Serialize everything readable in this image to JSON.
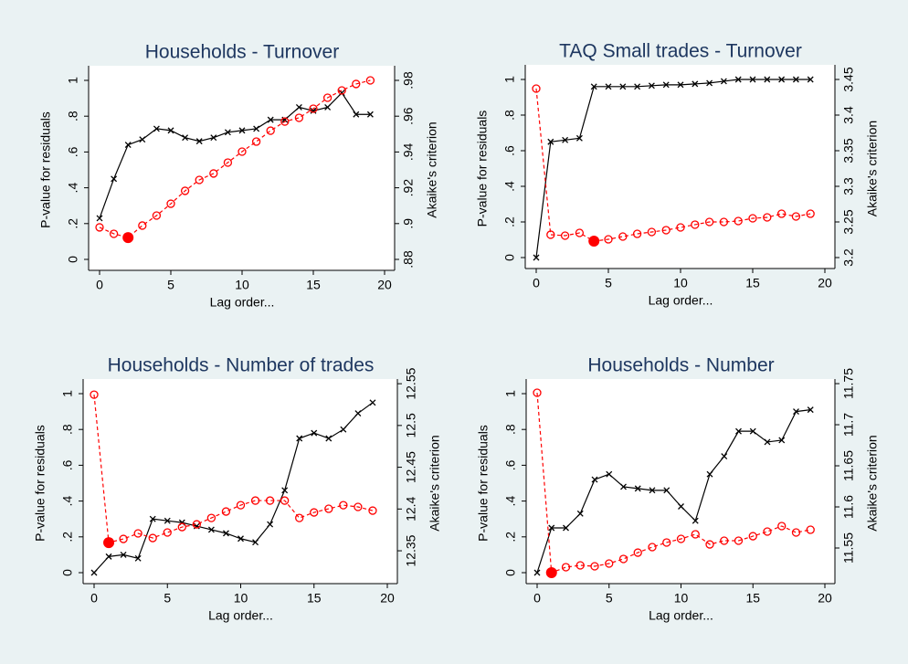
{
  "chart_data": [
    {
      "type": "line",
      "title": "Households - Turnover",
      "xlabel": "Lag order...",
      "ylabel": "P-value for residuals",
      "y2label": "Akaike's criterion",
      "x": [
        0,
        1,
        2,
        3,
        4,
        5,
        6,
        7,
        8,
        9,
        10,
        11,
        12,
        13,
        14,
        15,
        16,
        17,
        18,
        19
      ],
      "xlim": [
        0,
        20
      ],
      "xticks": [
        0,
        5,
        10,
        15,
        20
      ],
      "ylim": [
        0,
        1
      ],
      "yticks": [
        0,
        {
          "value": 0.2,
          "label": ".2"
        },
        {
          "value": 0.4,
          "label": ".4"
        },
        {
          "value": 0.6,
          "label": ".6"
        },
        {
          "value": 0.8,
          "label": ".8"
        },
        1
      ],
      "y2lim": [
        0.88,
        0.98
      ],
      "y2ticks": [
        {
          "value": 0.88,
          "label": ".88"
        },
        {
          "value": 0.9,
          "label": ".9"
        },
        {
          "value": 0.92,
          "label": ".92"
        },
        {
          "value": 0.94,
          "label": ".94"
        },
        {
          "value": 0.96,
          "label": ".96"
        },
        {
          "value": 0.98,
          "label": ".98"
        }
      ],
      "series": [
        {
          "color": "#000000",
          "marker": "x",
          "values": [
            0.23,
            0.45,
            0.64,
            0.67,
            0.73,
            0.72,
            0.68,
            0.66,
            0.68,
            0.71,
            0.72,
            0.73,
            0.78,
            0.78,
            0.85,
            0.83,
            0.85,
            0.93,
            0.81,
            0.81
          ]
        },
        {
          "color": "#ff0000",
          "marker": "circle",
          "dashed": true,
          "axis": "y2",
          "values": [
            0.8979,
            0.8943,
            0.8922,
            0.8989,
            0.9045,
            0.9111,
            0.9183,
            0.9244,
            0.928,
            0.9341,
            0.9402,
            0.9458,
            0.9519,
            0.957,
            0.9591,
            0.9642,
            0.9703,
            0.9744,
            0.978,
            0.98
          ]
        }
      ]
    },
    {
      "type": "line",
      "title": "TAQ Small trades - Turnover",
      "xlabel": "Lag order...",
      "ylabel": "P-value for residuals",
      "y2label": "Akaike's criterion",
      "x": [
        0,
        1,
        2,
        3,
        4,
        5,
        6,
        7,
        8,
        9,
        10,
        11,
        12,
        13,
        14,
        15,
        16,
        17,
        18,
        19
      ],
      "xlim": [
        0,
        20
      ],
      "xticks": [
        0,
        5,
        10,
        15,
        20
      ],
      "ylim": [
        0,
        1
      ],
      "yticks": [
        0,
        {
          "value": 0.2,
          "label": ".2"
        },
        {
          "value": 0.4,
          "label": ".4"
        },
        {
          "value": 0.6,
          "label": ".6"
        },
        {
          "value": 0.8,
          "label": ".8"
        },
        1
      ],
      "y2lim": [
        3.2,
        3.45
      ],
      "y2ticks": [
        3.2,
        3.25,
        3.3,
        3.35,
        3.4,
        3.45
      ],
      "series": [
        {
          "color": "#000000",
          "marker": "x",
          "values": [
            0,
            0.65,
            0.66,
            0.67,
            0.96,
            0.96,
            0.96,
            0.96,
            0.965,
            0.97,
            0.97,
            0.975,
            0.98,
            0.99,
            1,
            1,
            1,
            1,
            1,
            1
          ]
        },
        {
          "color": "#ff0000",
          "marker": "circle",
          "dashed": true,
          "axis": "y2",
          "values": [
            3.4372,
            3.2321,
            3.2308,
            3.2346,
            3.2231,
            3.2256,
            3.2295,
            3.2333,
            3.2359,
            3.2385,
            3.2423,
            3.2462,
            3.25,
            3.25,
            3.2513,
            3.2551,
            3.2564,
            3.2615,
            3.2577,
            3.2615
          ]
        }
      ]
    },
    {
      "type": "line",
      "title": "Households - Number of trades",
      "xlabel": "Lag order...",
      "ylabel": "P-value for residuals",
      "y2label": "Akaike's criterion",
      "x": [
        0,
        1,
        2,
        3,
        4,
        5,
        6,
        7,
        8,
        9,
        10,
        11,
        12,
        13,
        14,
        15,
        16,
        17,
        18,
        19
      ],
      "xlim": [
        0,
        20
      ],
      "xticks": [
        0,
        5,
        10,
        15,
        20
      ],
      "ylim": [
        0,
        1
      ],
      "yticks": [
        0,
        {
          "value": 0.2,
          "label": ".2"
        },
        {
          "value": 0.4,
          "label": ".4"
        },
        {
          "value": 0.6,
          "label": ".6"
        },
        {
          "value": 0.8,
          "label": ".8"
        },
        1
      ],
      "y2lim": [
        12.3238,
        12.5381
      ],
      "y2ticks": [
        12.35,
        12.4,
        12.45,
        12.5,
        12.55
      ],
      "series": [
        {
          "color": "#000000",
          "marker": "x",
          "values": [
            0,
            0.09,
            0.1,
            0.08,
            0.3,
            0.29,
            0.28,
            0.26,
            0.24,
            0.22,
            0.19,
            0.17,
            0.27,
            0.46,
            0.75,
            0.78,
            0.75,
            0.8,
            0.89,
            0.95
          ]
        },
        {
          "color": "#ff0000",
          "marker": "circle",
          "dashed": true,
          "axis": "y2",
          "values": [
            12.5369,
            12.3598,
            12.3642,
            12.3708,
            12.3653,
            12.3719,
            12.3784,
            12.3817,
            12.3893,
            12.397,
            12.4046,
            12.4101,
            12.4101,
            12.4101,
            12.3893,
            12.3959,
            12.4003,
            12.4046,
            12.4025,
            12.3981
          ]
        }
      ]
    },
    {
      "type": "line",
      "title": "Households - Number",
      "xlabel": "Lag order...",
      "ylabel": "P-value for residuals",
      "y2label": "Akaike's criterion",
      "x": [
        0,
        1,
        2,
        3,
        4,
        5,
        6,
        7,
        8,
        9,
        10,
        11,
        12,
        13,
        14,
        15,
        16,
        17,
        18,
        19
      ],
      "xlim": [
        0,
        20
      ],
      "xticks": [
        0,
        5,
        10,
        15,
        20
      ],
      "ylim": [
        0,
        1
      ],
      "yticks": [
        0,
        {
          "value": 0.2,
          "label": ".2"
        },
        {
          "value": 0.4,
          "label": ".4"
        },
        {
          "value": 0.6,
          "label": ".6"
        },
        {
          "value": 0.8,
          "label": ".8"
        },
        1
      ],
      "y2lim": [
        11.52,
        11.7378
      ],
      "y2ticks": [
        11.55,
        11.6,
        11.65,
        11.7,
        11.75
      ],
      "series": [
        {
          "color": "#000000",
          "marker": "x",
          "values": [
            0,
            0.25,
            0.25,
            0.33,
            0.52,
            0.55,
            0.48,
            0.47,
            0.46,
            0.46,
            0.37,
            0.29,
            0.55,
            0.65,
            0.79,
            0.79,
            0.73,
            0.74,
            0.9,
            0.91
          ]
        },
        {
          "color": "#ff0000",
          "marker": "circle",
          "dashed": true,
          "axis": "y2",
          "values": [
            11.7389,
            11.52,
            11.5267,
            11.5289,
            11.5278,
            11.5311,
            11.5367,
            11.5444,
            11.5511,
            11.5567,
            11.5611,
            11.5667,
            11.5544,
            11.5589,
            11.5589,
            11.5644,
            11.57,
            11.5767,
            11.5689,
            11.5722
          ]
        }
      ]
    }
  ]
}
